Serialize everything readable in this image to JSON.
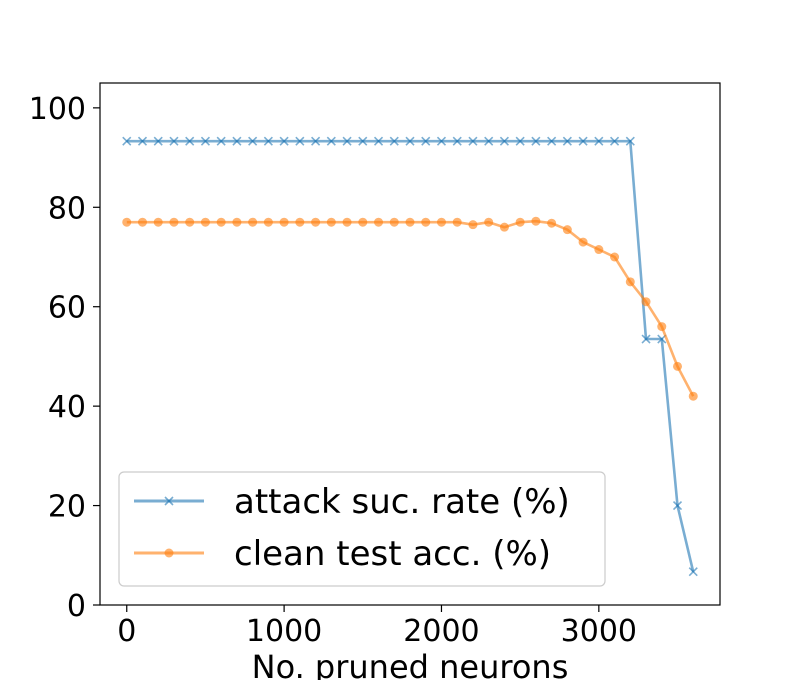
{
  "chart_data": {
    "type": "line",
    "title": "",
    "xlabel": "No. pruned neurons",
    "ylabel": "",
    "xlim": [
      -170,
      3770
    ],
    "ylim": [
      0,
      105
    ],
    "xticks": [
      0,
      1000,
      2000,
      3000
    ],
    "yticks": [
      0,
      20,
      40,
      60,
      80,
      100
    ],
    "grid": false,
    "legend_position": "lower-left",
    "x": [
      0,
      100,
      200,
      300,
      400,
      500,
      600,
      700,
      800,
      900,
      1000,
      1100,
      1200,
      1300,
      1400,
      1500,
      1600,
      1700,
      1800,
      1900,
      2000,
      2100,
      2200,
      2300,
      2400,
      2500,
      2600,
      2700,
      2800,
      2900,
      3000,
      3100,
      3200,
      3300,
      3400,
      3500,
      3600
    ],
    "series": [
      {
        "name": "attack suc. rate (%)",
        "color": "#1f77b4",
        "marker": "x",
        "values": [
          93.3,
          93.3,
          93.3,
          93.3,
          93.3,
          93.3,
          93.3,
          93.3,
          93.3,
          93.3,
          93.3,
          93.3,
          93.3,
          93.3,
          93.3,
          93.3,
          93.3,
          93.3,
          93.3,
          93.3,
          93.3,
          93.3,
          93.3,
          93.3,
          93.3,
          93.3,
          93.3,
          93.3,
          93.3,
          93.3,
          93.3,
          93.3,
          93.3,
          53.5,
          53.5,
          20.0,
          6.7
        ]
      },
      {
        "name": "clean test acc. (%)",
        "color": "#ff7f0e",
        "marker": "o",
        "values": [
          77.0,
          77.0,
          77.0,
          77.0,
          77.0,
          77.0,
          77.0,
          77.0,
          77.0,
          77.0,
          77.0,
          77.0,
          77.0,
          77.0,
          77.0,
          77.0,
          77.0,
          77.0,
          77.0,
          77.0,
          77.0,
          77.0,
          76.5,
          77.0,
          76.0,
          77.0,
          77.2,
          76.8,
          75.5,
          73.0,
          71.5,
          70.0,
          65.0,
          61.0,
          56.0,
          48.0,
          42.0
        ]
      }
    ]
  }
}
